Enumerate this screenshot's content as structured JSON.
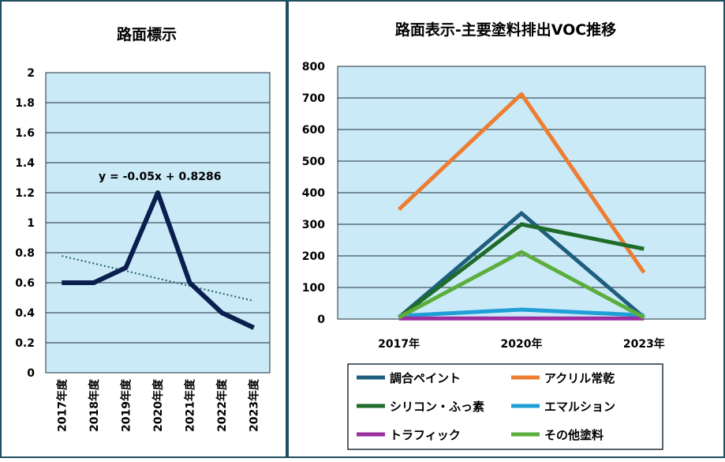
{
  "chart_data": [
    {
      "type": "line",
      "title": "路面標示",
      "categories": [
        "2017年度",
        "2018年度",
        "2019年度",
        "2020年度",
        "2021年度",
        "2022年度",
        "2023年度"
      ],
      "series": [
        {
          "values": [
            0.6,
            0.6,
            0.7,
            1.2,
            0.6,
            0.4,
            0.3
          ],
          "color": "#0a1f4d"
        }
      ],
      "trendline": {
        "type": "linear",
        "slope": -0.05,
        "intercept": 0.8286,
        "label": "y = -0.05x + 0.8286",
        "color": "#1f5f6e"
      },
      "ylim": [
        0,
        2
      ],
      "yticks": [
        "0",
        "0.2",
        "0.4",
        "0.6",
        "0.8",
        "1",
        "1.2",
        "1.4",
        "1.6",
        "1.8",
        "2"
      ],
      "grid": true
    },
    {
      "type": "line",
      "title": "路面表示-主要塗料排出VOC推移",
      "categories": [
        "2017年",
        "2020年",
        "2023年"
      ],
      "series": [
        {
          "name": "調合ペイント",
          "values": [
            5,
            335,
            5
          ],
          "color": "#1f5f7e"
        },
        {
          "name": "アクリル常乾",
          "values": [
            347,
            712,
            147
          ],
          "color": "#ed7d31"
        },
        {
          "name": "シリコン・ふっ素",
          "values": [
            5,
            300,
            222
          ],
          "color": "#1e6b2a"
        },
        {
          "name": "エマルション",
          "values": [
            10,
            30,
            12
          ],
          "color": "#1f9fd6"
        },
        {
          "name": "トラフィック",
          "values": [
            2,
            2,
            2
          ],
          "color": "#9b2fa0"
        },
        {
          "name": "その他塗料",
          "values": [
            5,
            212,
            5
          ],
          "color": "#5cae3c"
        }
      ],
      "ylim": [
        0,
        800
      ],
      "yticks": [
        "0",
        "100",
        "200",
        "300",
        "400",
        "500",
        "600",
        "700",
        "800"
      ],
      "legend": "bottom",
      "grid": true
    }
  ]
}
